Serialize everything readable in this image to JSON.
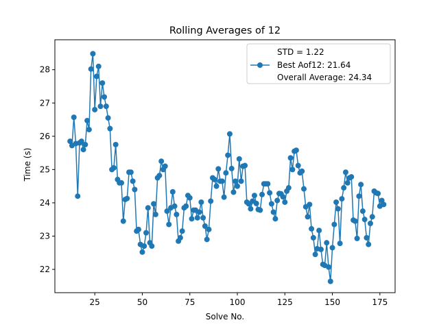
{
  "chart_data": {
    "type": "line",
    "title": "Rolling Averages of 12",
    "xlabel": "Solve No.",
    "ylabel": "Time (s)",
    "xlim": [
      4,
      183
    ],
    "ylim": [
      21.3,
      28.9
    ],
    "xticks": [
      25,
      50,
      75,
      100,
      125,
      150,
      175
    ],
    "yticks": [
      22,
      23,
      24,
      25,
      26,
      27,
      28
    ],
    "grid": false,
    "legend": {
      "placement": "top-right",
      "entries": [
        "STD = 1.22",
        "Best Aof12: 21.64",
        "Overall Average: 24.34"
      ]
    },
    "color": "#1f77b4",
    "series": [
      {
        "x": [
          12,
          13,
          14,
          15,
          16,
          17,
          18,
          19,
          20,
          21,
          22,
          23,
          24,
          25,
          26,
          27,
          28,
          29,
          30,
          31,
          32,
          33,
          34,
          35,
          36,
          37,
          38,
          39,
          40,
          41,
          42,
          43,
          44,
          45,
          46,
          47,
          48,
          49,
          50,
          51,
          52,
          53,
          54,
          55,
          56,
          57,
          58,
          59,
          60,
          61,
          62,
          63,
          64,
          65,
          66,
          67,
          68,
          69,
          70,
          71,
          72,
          73,
          74,
          75,
          76,
          77,
          78,
          79,
          80,
          81,
          82,
          83,
          84,
          85,
          86,
          87,
          88,
          89,
          90,
          91,
          92,
          93,
          94,
          95,
          96,
          97,
          98,
          99,
          100,
          101,
          102,
          103,
          104,
          105,
          106,
          107,
          108,
          109,
          110,
          111,
          112,
          113,
          114,
          115,
          116,
          117,
          118,
          119,
          120,
          121,
          122,
          123,
          124,
          125,
          126,
          127,
          128,
          129,
          130,
          131,
          132,
          133,
          134,
          135,
          136,
          137,
          138,
          139,
          140,
          141,
          142,
          143,
          144,
          145,
          146,
          147,
          148,
          149,
          150,
          151,
          152,
          153,
          154,
          155,
          156,
          157,
          158,
          159,
          160,
          161,
          162,
          163,
          164,
          165,
          166,
          167,
          168,
          169,
          170,
          171,
          172,
          173,
          174,
          175,
          176,
          177
        ],
        "values": [
          25.85,
          25.72,
          26.57,
          25.78,
          24.2,
          25.8,
          25.85,
          25.6,
          25.75,
          26.47,
          26.2,
          28.02,
          28.48,
          26.8,
          27.8,
          28.1,
          26.9,
          27.6,
          27.18,
          26.9,
          26.55,
          26.23,
          25.0,
          25.05,
          25.75,
          24.7,
          24.6,
          24.6,
          23.45,
          24.1,
          24.13,
          24.92,
          24.92,
          24.65,
          24.4,
          23.15,
          23.2,
          22.75,
          22.52,
          22.7,
          23.1,
          23.85,
          22.8,
          22.7,
          23.97,
          23.65,
          24.75,
          24.82,
          25.25,
          25.0,
          25.1,
          23.75,
          23.35,
          23.85,
          24.33,
          23.9,
          23.65,
          22.85,
          22.95,
          23.15,
          23.85,
          23.9,
          24.22,
          24.15,
          23.52,
          23.78,
          23.78,
          23.55,
          23.72,
          24.02,
          23.55,
          23.3,
          22.9,
          23.2,
          24.05,
          24.75,
          24.7,
          24.5,
          25.02,
          24.65,
          24.65,
          24.17,
          24.9,
          25.43,
          26.07,
          25.03,
          24.32,
          24.65,
          24.5,
          25.32,
          24.65,
          25.1,
          25.12,
          24.02,
          23.97,
          23.82,
          24.05,
          24.22,
          23.98,
          23.8,
          23.78,
          24.25,
          24.57,
          24.57,
          24.57,
          24.3,
          23.97,
          23.72,
          23.52,
          24.07,
          24.28,
          24.27,
          24.18,
          24.02,
          24.35,
          24.45,
          25.35,
          25.0,
          25.55,
          25.58,
          25.12,
          24.9,
          24.95,
          24.42,
          23.88,
          23.58,
          23.95,
          23.22,
          22.95,
          22.45,
          22.62,
          23.17,
          22.6,
          22.15,
          22.12,
          22.8,
          22.07,
          21.64,
          22.65,
          23.35,
          24.02,
          23.82,
          22.78,
          24.12,
          24.45,
          24.92,
          24.6,
          24.75,
          24.78,
          23.48,
          23.45,
          22.93,
          24.2,
          24.55,
          23.75,
          23.5,
          22.95,
          22.75,
          23.38,
          23.58,
          24.35,
          24.3,
          24.28,
          23.9,
          24.07,
          23.95
        ]
      }
    ]
  }
}
